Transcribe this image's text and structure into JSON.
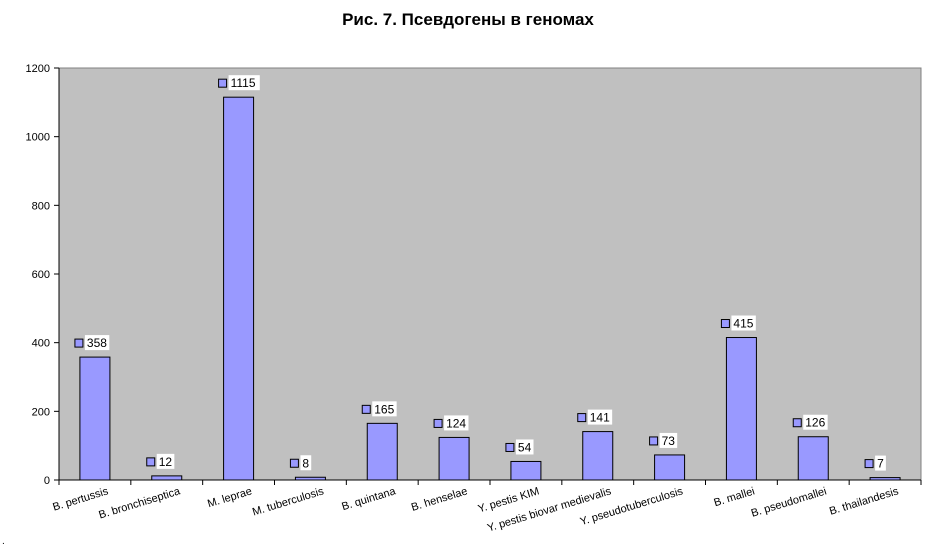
{
  "chart_data": {
    "type": "bar",
    "title": "Рис. 7. Псевдогены в геномах",
    "xlabel": "",
    "ylabel": "",
    "ylim": [
      0,
      1200
    ],
    "yticks": [
      0,
      200,
      400,
      600,
      800,
      1000,
      1200
    ],
    "categories": [
      "B. pertussis",
      "B. bronchiseptica",
      "M. leprae",
      "M. tuberculosis",
      "B. quintana",
      "B. henselae",
      "Y. pestis KIM",
      "Y. pestis biovar medievalis",
      "Y. pseudotuberculosis",
      "B. mallei",
      "B. pseudomallei",
      "B. thailandesis"
    ],
    "values": [
      358,
      12,
      1115,
      8,
      165,
      124,
      54,
      141,
      73,
      415,
      126,
      7
    ],
    "data_labels": [
      "358",
      "12",
      "1115",
      "8",
      "165",
      "124",
      "54",
      "141",
      "73",
      "415",
      "126",
      "7"
    ],
    "grid": false,
    "legend": "none",
    "colors": {
      "bar": "#9999ff",
      "plot_background": "#c0c0c0",
      "axis": "#000000"
    }
  },
  "footnote": "."
}
